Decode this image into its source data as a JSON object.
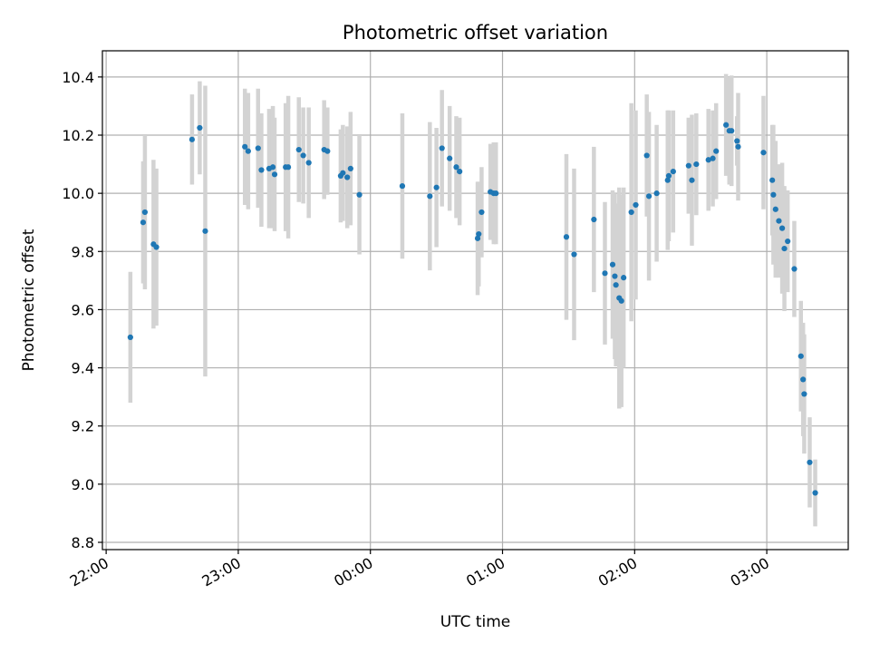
{
  "chart_data": {
    "type": "scatter",
    "title": "Photometric offset variation",
    "xlabel": "UTC time",
    "ylabel": "Photometric offset",
    "x_unit": "minutes after 22:00 UTC",
    "xlim": [
      -1.7,
      337
    ],
    "ylim": [
      8.775,
      10.49
    ],
    "x_ticks": [
      0,
      60,
      120,
      180,
      240,
      300
    ],
    "x_tick_labels": [
      "22:00",
      "23:00",
      "00:00",
      "01:00",
      "02:00",
      "03:00"
    ],
    "y_ticks": [
      8.8,
      9.0,
      9.2,
      9.4,
      9.6,
      9.8,
      10.0,
      10.2,
      10.4
    ],
    "y_tick_labels": [
      "8.8",
      "9.0",
      "9.2",
      "9.4",
      "9.6",
      "9.8",
      "10.0",
      "10.2",
      "10.4"
    ],
    "grid": true,
    "colors": {
      "point": "#1f77b4",
      "errorbar": "#d3d3d3",
      "grid": "#b0b0b0"
    },
    "points": [
      [
        11.0,
        9.505,
        0.225
      ],
      [
        16.8,
        9.9,
        0.21
      ],
      [
        17.6,
        9.935,
        0.265
      ],
      [
        21.5,
        9.825,
        0.29
      ],
      [
        22.8,
        9.815,
        0.27
      ],
      [
        39.0,
        10.185,
        0.155
      ],
      [
        42.5,
        10.225,
        0.16
      ],
      [
        45.0,
        9.87,
        0.5
      ],
      [
        63.0,
        10.16,
        0.2
      ],
      [
        64.5,
        10.145,
        0.2
      ],
      [
        69.0,
        10.155,
        0.205
      ],
      [
        70.5,
        10.08,
        0.195
      ],
      [
        74.0,
        10.085,
        0.205
      ],
      [
        75.7,
        10.09,
        0.21
      ],
      [
        76.5,
        10.065,
        0.195
      ],
      [
        81.5,
        10.09,
        0.22
      ],
      [
        82.7,
        10.09,
        0.245
      ],
      [
        87.5,
        10.15,
        0.18
      ],
      [
        89.5,
        10.13,
        0.165
      ],
      [
        92.0,
        10.105,
        0.19
      ],
      [
        99.0,
        10.15,
        0.17
      ],
      [
        100.5,
        10.145,
        0.15
      ],
      [
        106.5,
        10.06,
        0.16
      ],
      [
        107.5,
        10.07,
        0.165
      ],
      [
        109.5,
        10.055,
        0.175
      ],
      [
        111.0,
        10.085,
        0.195
      ],
      [
        115.0,
        9.995,
        0.205
      ],
      [
        134.5,
        10.025,
        0.25
      ],
      [
        147.0,
        9.99,
        0.255
      ],
      [
        150.0,
        10.02,
        0.205
      ],
      [
        152.5,
        10.155,
        0.2
      ],
      [
        156.0,
        10.12,
        0.18
      ],
      [
        159.0,
        10.09,
        0.175
      ],
      [
        160.5,
        10.075,
        0.185
      ],
      [
        168.7,
        9.845,
        0.195
      ],
      [
        169.2,
        9.86,
        0.18
      ],
      [
        170.5,
        9.935,
        0.155
      ],
      [
        174.5,
        10.005,
        0.165
      ],
      [
        176.0,
        10.0,
        0.175
      ],
      [
        177.0,
        10.0,
        0.175
      ],
      [
        209.0,
        9.85,
        0.285
      ],
      [
        212.5,
        9.79,
        0.295
      ],
      [
        221.5,
        9.91,
        0.25
      ],
      [
        226.5,
        9.725,
        0.245
      ],
      [
        230.0,
        9.755,
        0.255
      ],
      [
        231.0,
        9.715,
        0.285
      ],
      [
        231.5,
        9.685,
        0.28
      ],
      [
        233.0,
        9.64,
        0.38
      ],
      [
        234.0,
        9.63,
        0.365
      ],
      [
        235.0,
        9.71,
        0.31
      ],
      [
        238.5,
        9.935,
        0.375
      ],
      [
        240.5,
        9.96,
        0.325
      ],
      [
        245.5,
        10.13,
        0.21
      ],
      [
        246.5,
        9.99,
        0.29
      ],
      [
        250.0,
        10.0,
        0.235
      ],
      [
        255.0,
        10.045,
        0.24
      ],
      [
        255.5,
        10.06,
        0.225
      ],
      [
        257.5,
        10.075,
        0.21
      ],
      [
        264.5,
        10.095,
        0.165
      ],
      [
        266.0,
        10.045,
        0.225
      ],
      [
        268.0,
        10.1,
        0.175
      ],
      [
        273.5,
        10.115,
        0.175
      ],
      [
        275.5,
        10.12,
        0.165
      ],
      [
        277.0,
        10.145,
        0.165
      ],
      [
        281.5,
        10.235,
        0.175
      ],
      [
        283.0,
        10.215,
        0.185
      ],
      [
        284.0,
        10.215,
        0.19
      ],
      [
        286.5,
        10.18,
        0.085
      ],
      [
        287.0,
        10.16,
        0.185
      ],
      [
        298.5,
        10.14,
        0.195
      ],
      [
        302.5,
        10.045,
        0.19
      ],
      [
        303.0,
        9.995,
        0.24
      ],
      [
        304.0,
        9.945,
        0.235
      ],
      [
        305.5,
        9.905,
        0.195
      ],
      [
        307.0,
        9.88,
        0.225
      ],
      [
        308.0,
        9.81,
        0.215
      ],
      [
        309.5,
        9.835,
        0.175
      ],
      [
        312.5,
        9.74,
        0.165
      ],
      [
        315.5,
        9.44,
        0.19
      ],
      [
        316.5,
        9.36,
        0.195
      ],
      [
        317.0,
        9.31,
        0.205
      ],
      [
        319.5,
        9.075,
        0.155
      ],
      [
        322.0,
        8.97,
        0.115
      ]
    ]
  }
}
